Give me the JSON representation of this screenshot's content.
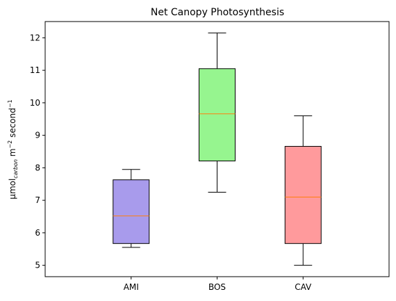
{
  "chart_data": {
    "type": "box",
    "title": "Net Canopy Photosynthesis",
    "xlabel": "",
    "ylabel": {
      "prefix": "µmol",
      "subscript": "carbon",
      "middle": " m",
      "sup1": "−2",
      "middle2": " second",
      "sup2": "−1"
    },
    "ylim": [
      4.65,
      12.5
    ],
    "yticks": [
      "5",
      "6",
      "7",
      "8",
      "9",
      "10",
      "11",
      "12"
    ],
    "grid": false,
    "categories": [
      "AMI",
      "BOS",
      "CAV"
    ],
    "boxes": [
      {
        "label": "AMI",
        "whisker_low": 5.55,
        "q1": 5.67,
        "median": 6.52,
        "q3": 7.63,
        "whisker_high": 7.95,
        "color": "#a89bec"
      },
      {
        "label": "BOS",
        "whisker_low": 7.25,
        "q1": 8.21,
        "median": 9.66,
        "q3": 11.05,
        "whisker_high": 12.15,
        "color": "#96f58f"
      },
      {
        "label": "CAV",
        "whisker_low": 5.0,
        "q1": 5.67,
        "median": 7.1,
        "q3": 8.66,
        "whisker_high": 9.6,
        "color": "#ff9a9c"
      }
    ],
    "median_color": "#ff7f0e"
  }
}
